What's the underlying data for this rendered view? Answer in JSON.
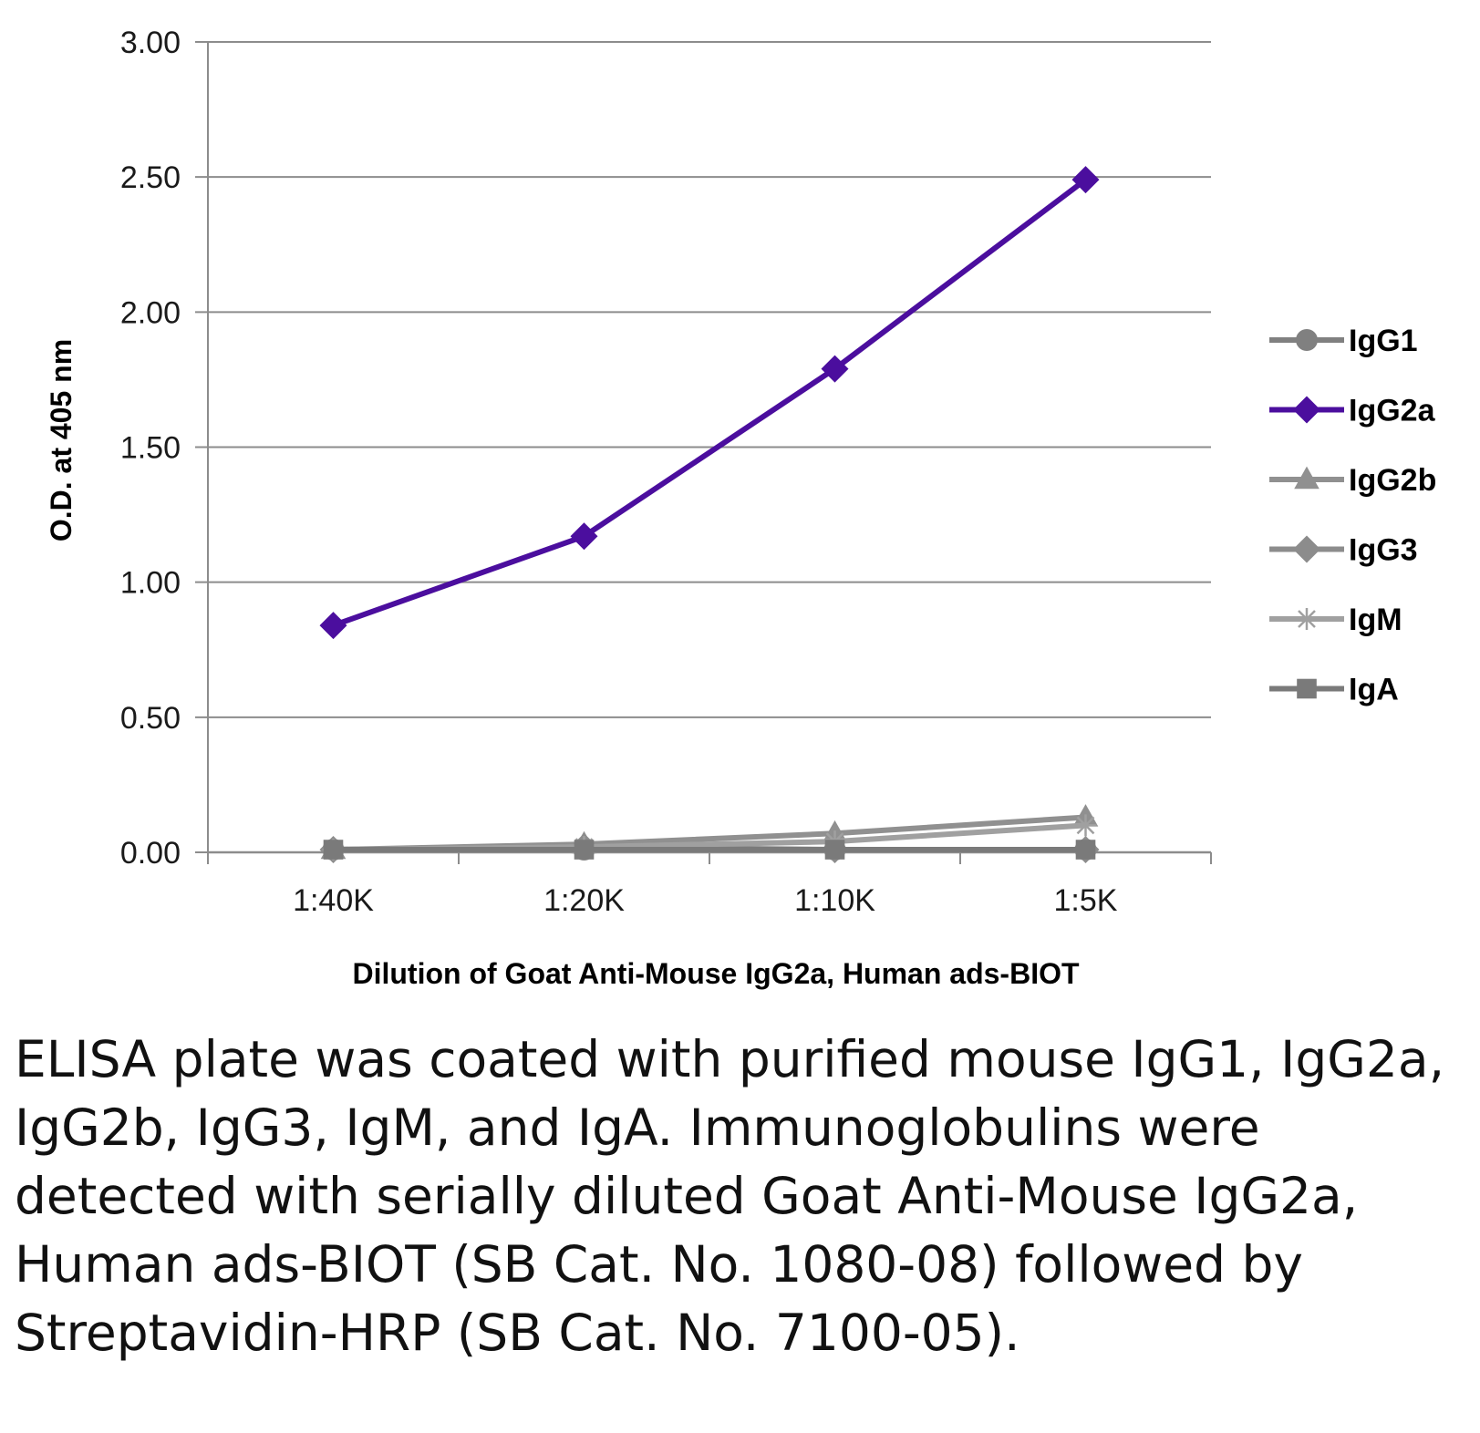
{
  "chart_data": {
    "type": "line",
    "categories": [
      "1:40K",
      "1:20K",
      "1:10K",
      "1:5K"
    ],
    "ylim": [
      0,
      3
    ],
    "yticks": [
      "0.00",
      "0.50",
      "1.00",
      "1.50",
      "2.00",
      "2.50",
      "3.00"
    ],
    "ylabel": "O.D. at 405 nm",
    "xlabel": "Dilution of Goat Anti-Mouse IgG2a, Human ads-BIOT",
    "grid": true,
    "legend_position": "right",
    "series": [
      {
        "name": "IgG1",
        "values": [
          0.01,
          0.01,
          0.01,
          0.01
        ],
        "color": "#808080",
        "marker": "circle"
      },
      {
        "name": "IgG2a",
        "values": [
          0.84,
          1.17,
          1.79,
          2.49
        ],
        "color": "#4B0E9E",
        "marker": "diamond"
      },
      {
        "name": "IgG2b",
        "values": [
          0.01,
          0.03,
          0.07,
          0.13
        ],
        "color": "#909090",
        "marker": "triangle"
      },
      {
        "name": "IgG3",
        "values": [
          0.01,
          0.02,
          0.01,
          0.01
        ],
        "color": "#8c8c8c",
        "marker": "diamond"
      },
      {
        "name": "IgM",
        "values": [
          0.01,
          0.02,
          0.04,
          0.1
        ],
        "color": "#a0a0a0",
        "marker": "star"
      },
      {
        "name": "IgA",
        "values": [
          0.01,
          0.01,
          0.01,
          0.01
        ],
        "color": "#7a7a7a",
        "marker": "square"
      }
    ]
  },
  "caption": "ELISA plate was coated with purified mouse IgG1, IgG2a, IgG2b, IgG3, IgM, and IgA. Immunoglobulins were detected with serially diluted Goat Anti-Mouse IgG2a, Human ads-BIOT (SB Cat. No. 1080-08) followed by Streptavidin-HRP (SB Cat. No. 7100-05)."
}
